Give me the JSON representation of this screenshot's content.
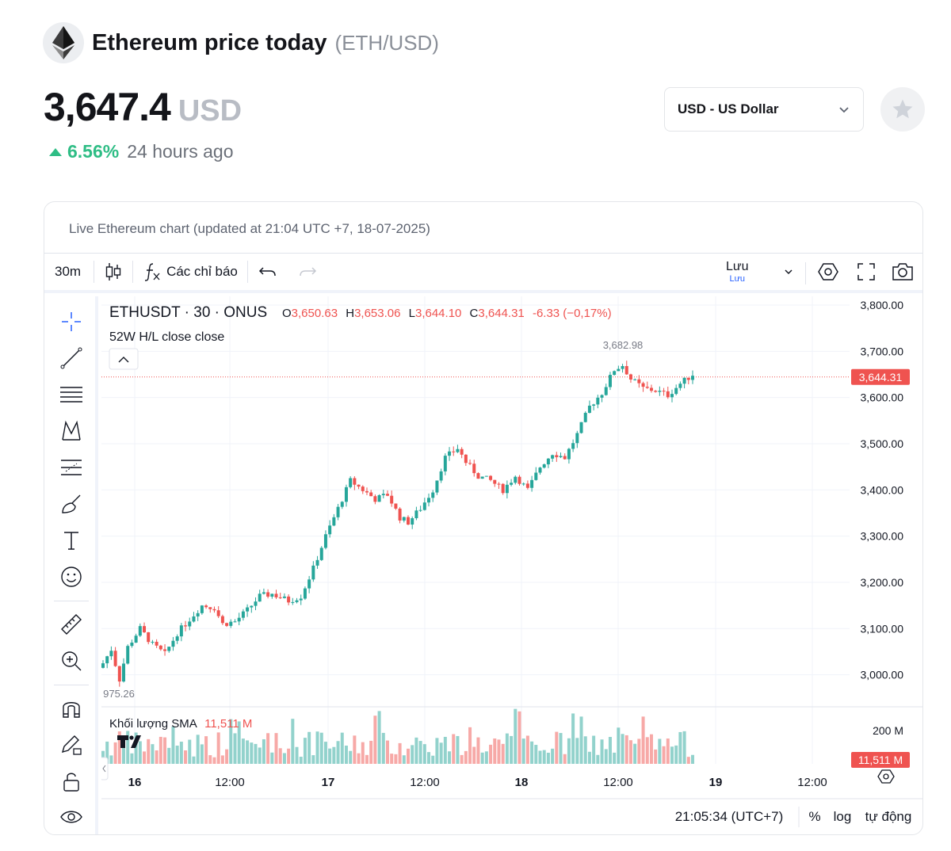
{
  "header": {
    "title": "Ethereum price today",
    "pair": "(ETH/USD)",
    "price": "3,647.4",
    "price_currency": "USD",
    "change": "6.56%",
    "change_period": "24 hours ago",
    "currency_select": "USD - US Dollar"
  },
  "card": {
    "title": "Live Ethereum chart (updated at 21:04 UTC +7, 18-07-2025)"
  },
  "toolbar": {
    "interval": "30m",
    "indicators": "Các chỉ báo",
    "save": "Lưu",
    "save_sub": "Lưu"
  },
  "legend": {
    "symbol": "ETHUSDT · 30 · ONUS",
    "o_label": "O",
    "o": "3,650.63",
    "h_label": "H",
    "h": "3,653.06",
    "l_label": "L",
    "l": "3,644.10",
    "c_label": "C",
    "c": "3,644.31",
    "change": "-6.33 (−0,17%)",
    "indicator": "52W H/L close close",
    "volume_label": "Khối lượng SMA",
    "volume_value": "11,511 M"
  },
  "bottom_bar": {
    "time": "21:05:34 (UTC+7)",
    "percent": "%",
    "log": "log",
    "auto": "tự động"
  },
  "colors": {
    "up": "#26a69a",
    "down": "#ef5350",
    "change_up": "#2ebd85"
  },
  "chart_data": {
    "type": "candlestick",
    "y_ticks": [
      "3,800.00",
      "3,700.00",
      "3,600.00",
      "3,500.00",
      "3,400.00",
      "3,300.00",
      "3,200.00",
      "3,100.00",
      "3,000.00"
    ],
    "ylim": [
      2960,
      3820
    ],
    "x_ticks": [
      "16",
      "12:00",
      "17",
      "12:00",
      "18",
      "12:00",
      "19",
      "12:00"
    ],
    "last_price_label": "3,644.31",
    "last_price": 3644.31,
    "high_label": "3,682.98",
    "low_label": "975.26",
    "volume_tick": "200 M",
    "volume_last_label": "11,511 M",
    "close_path": [
      [
        0,
        3025
      ],
      [
        2,
        3055
      ],
      [
        4,
        2990
      ],
      [
        6,
        3060
      ],
      [
        9,
        3100
      ],
      [
        12,
        3065
      ],
      [
        15,
        3045
      ],
      [
        18,
        3090
      ],
      [
        21,
        3120
      ],
      [
        24,
        3150
      ],
      [
        27,
        3145
      ],
      [
        29,
        3110
      ],
      [
        32,
        3115
      ],
      [
        35,
        3140
      ],
      [
        38,
        3170
      ],
      [
        41,
        3175
      ],
      [
        45,
        3160
      ],
      [
        48,
        3170
      ],
      [
        51,
        3230
      ],
      [
        54,
        3300
      ],
      [
        57,
        3360
      ],
      [
        60,
        3420
      ],
      [
        63,
        3400
      ],
      [
        66,
        3380
      ],
      [
        69,
        3390
      ],
      [
        72,
        3340
      ],
      [
        74,
        3330
      ],
      [
        77,
        3360
      ],
      [
        80,
        3400
      ],
      [
        83,
        3470
      ],
      [
        86,
        3490
      ],
      [
        88,
        3460
      ],
      [
        91,
        3430
      ],
      [
        94,
        3420
      ],
      [
        97,
        3400
      ],
      [
        100,
        3430
      ],
      [
        103,
        3400
      ],
      [
        106,
        3450
      ],
      [
        109,
        3480
      ],
      [
        112,
        3470
      ],
      [
        115,
        3520
      ],
      [
        118,
        3580
      ],
      [
        121,
        3610
      ],
      [
        124,
        3660
      ],
      [
        126,
        3670
      ],
      [
        128,
        3640
      ],
      [
        131,
        3620
      ],
      [
        134,
        3615
      ],
      [
        137,
        3605
      ],
      [
        140,
        3630
      ],
      [
        143,
        3650
      ]
    ]
  }
}
